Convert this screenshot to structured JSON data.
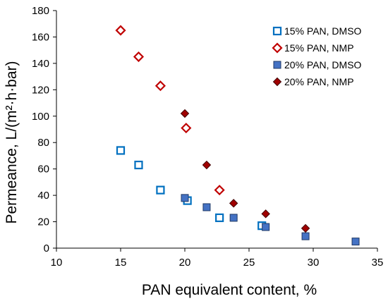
{
  "chart_data": {
    "type": "scatter",
    "xlabel": "PAN equivalent content, %",
    "ylabel": "Permeance, L/(m²·h·bar)",
    "xlim": [
      10,
      35
    ],
    "ylim": [
      0,
      180
    ],
    "xticks": [
      10,
      15,
      20,
      25,
      30,
      35
    ],
    "yticks": [
      0,
      20,
      40,
      60,
      80,
      100,
      120,
      140,
      160,
      180
    ],
    "grid": false,
    "legend_position": "top-right",
    "series": [
      {
        "name": "15% PAN, DMSO",
        "marker": "square-open",
        "color": "#0070C0",
        "points": [
          [
            15.0,
            74
          ],
          [
            16.4,
            63
          ],
          [
            18.1,
            44
          ],
          [
            20.2,
            36
          ],
          [
            22.7,
            23
          ],
          [
            26.0,
            17
          ]
        ]
      },
      {
        "name": "15% PAN, NMP",
        "marker": "diamond-open",
        "color": "#C00000",
        "points": [
          [
            15.0,
            165
          ],
          [
            16.4,
            145
          ],
          [
            18.1,
            123
          ],
          [
            20.1,
            91
          ],
          [
            22.7,
            44
          ]
        ]
      },
      {
        "name": "20% PAN, DMSO",
        "marker": "square-filled",
        "color": "#4472C4",
        "edge": "#1F3864",
        "points": [
          [
            20.0,
            38
          ],
          [
            21.7,
            31
          ],
          [
            23.8,
            23
          ],
          [
            26.3,
            16
          ],
          [
            29.4,
            9
          ],
          [
            33.3,
            5
          ]
        ]
      },
      {
        "name": "20% PAN, NMP",
        "marker": "diamond-filled",
        "color": "#A00000",
        "edge": "#400000",
        "points": [
          [
            20.0,
            102
          ],
          [
            21.7,
            63
          ],
          [
            23.8,
            34
          ],
          [
            26.3,
            26
          ],
          [
            29.4,
            15
          ]
        ]
      }
    ]
  }
}
